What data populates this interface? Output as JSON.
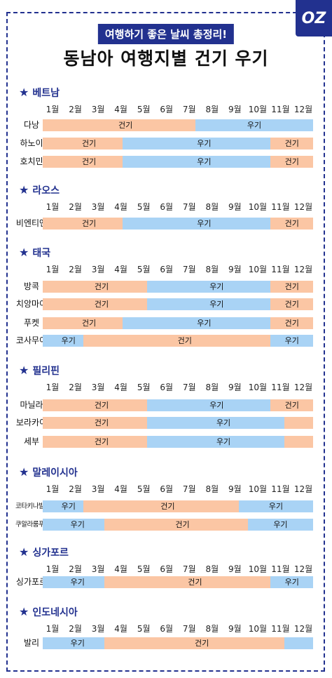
{
  "header": {
    "badge": "여행하기 좋은 날씨 총정리!",
    "title": "동남아 여행지별 건기 우기",
    "logo": "OZ"
  },
  "colors": {
    "dry": "#fbc6a4",
    "wet": "#a9d3f5",
    "accent": "#22318f"
  },
  "labels": {
    "dry": "건기",
    "wet": "우기"
  },
  "months": [
    "1월",
    "2월",
    "3월",
    "4월",
    "5월",
    "6월",
    "7월",
    "8월",
    "9월",
    "10월",
    "11월",
    "12월"
  ],
  "chart_data": {
    "type": "table",
    "title": "동남아 여행지별 건기 우기",
    "sections": [
      {
        "name": "베트남",
        "rows": [
          {
            "name": "다낭",
            "bars": [
              {
                "season": "dry",
                "start": 1,
                "end": 7.4,
                "label": "건기"
              },
              {
                "season": "wet",
                "start": 7.7,
                "end": 12,
                "label": "우기"
              }
            ]
          },
          {
            "name": "하노이",
            "bars": [
              {
                "season": "dry",
                "start": 1,
                "end": 4.2,
                "label": "건기"
              },
              {
                "season": "wet",
                "start": 4.5,
                "end": 10.8,
                "label": "우기"
              },
              {
                "season": "dry",
                "start": 11,
                "end": 12,
                "label": "건기"
              }
            ]
          },
          {
            "name": "호치민",
            "bars": [
              {
                "season": "dry",
                "start": 1,
                "end": 4.2,
                "label": "건기"
              },
              {
                "season": "wet",
                "start": 4.5,
                "end": 10.8,
                "label": "우기"
              },
              {
                "season": "dry",
                "start": 11,
                "end": 12,
                "label": "건기"
              }
            ]
          }
        ]
      },
      {
        "name": "라오스",
        "rows": [
          {
            "name": "비엔티엔",
            "bars": [
              {
                "season": "dry",
                "start": 1,
                "end": 4.2,
                "label": "건기"
              },
              {
                "season": "wet",
                "start": 4.5,
                "end": 10.8,
                "label": "우기"
              },
              {
                "season": "dry",
                "start": 11,
                "end": 12,
                "label": "건기"
              }
            ]
          }
        ]
      },
      {
        "name": "태국",
        "rows": [
          {
            "name": "방콕",
            "bars": [
              {
                "season": "dry",
                "start": 1,
                "end": 5.3,
                "label": "건기"
              },
              {
                "season": "wet",
                "start": 5.6,
                "end": 10.8,
                "label": "우기"
              },
              {
                "season": "dry",
                "start": 11,
                "end": 12,
                "label": "건기"
              }
            ]
          },
          {
            "name": "치앙마이",
            "bars": [
              {
                "season": "dry",
                "start": 1,
                "end": 5.3,
                "label": "건기"
              },
              {
                "season": "wet",
                "start": 5.6,
                "end": 10.8,
                "label": "우기"
              },
              {
                "season": "dry",
                "start": 11,
                "end": 12,
                "label": "건기"
              }
            ]
          },
          {
            "name": "푸켓",
            "bars": [
              {
                "season": "dry",
                "start": 1,
                "end": 4.2,
                "label": "건기"
              },
              {
                "season": "wet",
                "start": 4.5,
                "end": 10.8,
                "label": "우기"
              },
              {
                "season": "dry",
                "start": 11,
                "end": 12,
                "label": "건기"
              }
            ]
          },
          {
            "name": "코사무이",
            "bars": [
              {
                "season": "wet",
                "start": 1,
                "end": 2.4,
                "label": "우기"
              },
              {
                "season": "dry",
                "start": 2.8,
                "end": 10.8,
                "label": "건기"
              },
              {
                "season": "wet",
                "start": 11,
                "end": 12,
                "label": "우기"
              }
            ]
          }
        ]
      },
      {
        "name": "필리핀",
        "rows": [
          {
            "name": "마닐라",
            "bars": [
              {
                "season": "dry",
                "start": 1,
                "end": 5.3,
                "label": "건기"
              },
              {
                "season": "wet",
                "start": 5.6,
                "end": 10.8,
                "label": "우기"
              },
              {
                "season": "dry",
                "start": 11,
                "end": 12,
                "label": "건기"
              }
            ]
          },
          {
            "name": "보라카이",
            "bars": [
              {
                "season": "dry",
                "start": 1,
                "end": 5.3,
                "label": "건기"
              },
              {
                "season": "wet",
                "start": 5.6,
                "end": 11.4,
                "label": "우기"
              },
              {
                "season": "dry",
                "start": 11.6,
                "end": 12,
                "label": ""
              }
            ]
          },
          {
            "name": "세부",
            "bars": [
              {
                "season": "dry",
                "start": 1,
                "end": 5.3,
                "label": "건기"
              },
              {
                "season": "wet",
                "start": 5.6,
                "end": 11.4,
                "label": "우기"
              },
              {
                "season": "dry",
                "start": 11.6,
                "end": 12,
                "label": ""
              }
            ]
          }
        ]
      },
      {
        "name": "말레이시아",
        "rows": [
          {
            "name": "코타키나발루",
            "bars": [
              {
                "season": "wet",
                "start": 1,
                "end": 2.4,
                "label": "우기"
              },
              {
                "season": "dry",
                "start": 2.8,
                "end": 9.3,
                "label": "건기"
              },
              {
                "season": "wet",
                "start": 9.6,
                "end": 12,
                "label": "우기"
              }
            ]
          },
          {
            "name": "쿠알라룸푸르",
            "bars": [
              {
                "season": "wet",
                "start": 1,
                "end": 3.2,
                "label": "우기"
              },
              {
                "season": "dry",
                "start": 3.7,
                "end": 9.7,
                "label": "건기"
              },
              {
                "season": "wet",
                "start": 10,
                "end": 12,
                "label": "우기"
              }
            ]
          }
        ]
      },
      {
        "name": "싱가포르",
        "rows": [
          {
            "name": "싱가포르",
            "bars": [
              {
                "season": "wet",
                "start": 1,
                "end": 3.2,
                "label": "우기"
              },
              {
                "season": "dry",
                "start": 3.7,
                "end": 10.8,
                "label": "건기"
              },
              {
                "season": "wet",
                "start": 11,
                "end": 12,
                "label": "우기"
              }
            ]
          }
        ]
      },
      {
        "name": "인도네시아",
        "rows": [
          {
            "name": "발리",
            "bars": [
              {
                "season": "wet",
                "start": 1,
                "end": 3.2,
                "label": "우기"
              },
              {
                "season": "dry",
                "start": 3.7,
                "end": 11.4,
                "label": "건기"
              },
              {
                "season": "wet",
                "start": 11.6,
                "end": 12,
                "label": ""
              }
            ]
          }
        ]
      }
    ]
  }
}
